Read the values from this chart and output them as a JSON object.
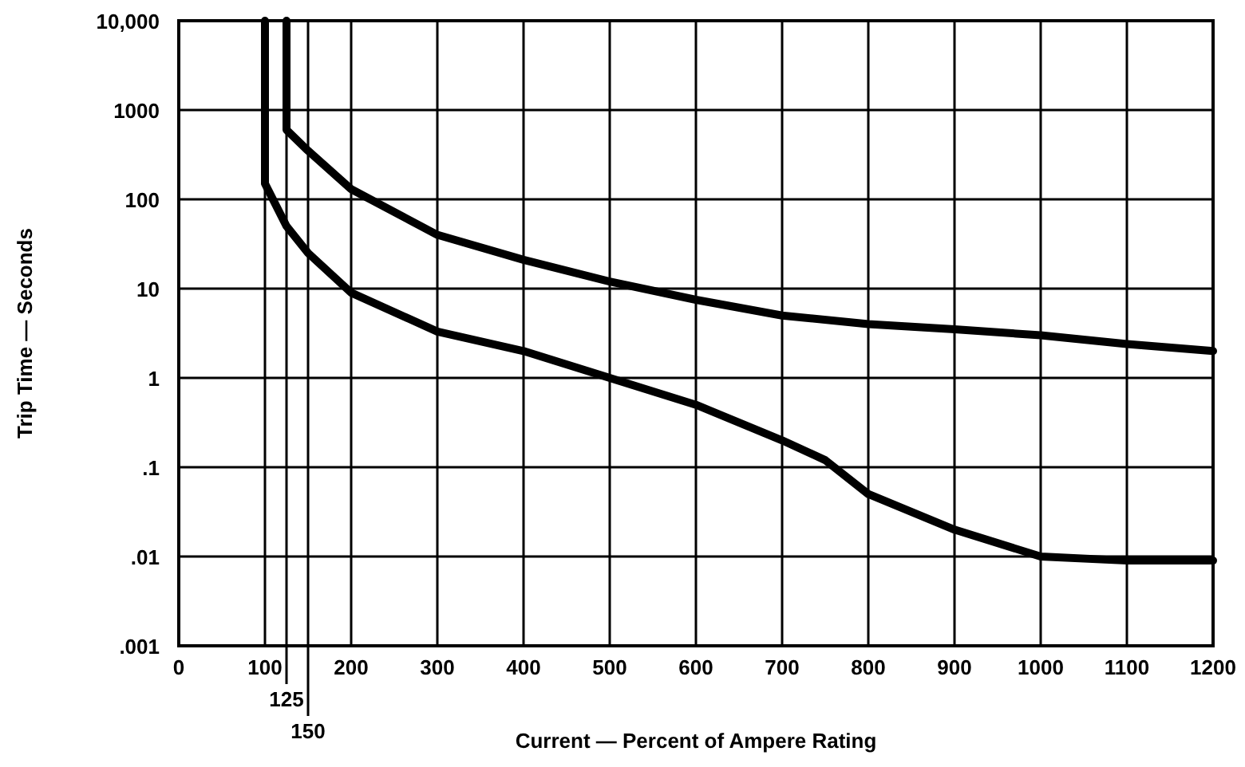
{
  "chart_data": {
    "type": "line",
    "xlabel": "Current — Percent of Ampere Rating",
    "ylabel": "Trip Time — Seconds",
    "log": "y",
    "grid": true,
    "line_style": "solid",
    "marker": "none",
    "xlim": [
      0,
      1200
    ],
    "ylim": [
      0.001,
      10000
    ],
    "ref_lines": [
      {
        "axis": "x",
        "value": 125,
        "label": "125"
      },
      {
        "axis": "x",
        "value": 150,
        "label": "150"
      }
    ],
    "xticks": [
      0,
      100,
      200,
      300,
      400,
      500,
      600,
      700,
      800,
      900,
      1000,
      1100,
      1200
    ],
    "yticks": [
      {
        "value": 0.001,
        "label": ".001"
      },
      {
        "value": 0.01,
        "label": ".01"
      },
      {
        "value": 0.1,
        "label": ".1"
      },
      1,
      10,
      100,
      1000,
      {
        "value": 10000,
        "label": "10,000"
      }
    ],
    "series": [
      {
        "color": "#000000",
        "x": [
          125,
          125,
          150,
          200,
          300,
          400,
          500,
          600,
          700,
          800,
          900,
          1000,
          1100,
          1200
        ],
        "values": [
          10000,
          600,
          350,
          130,
          40,
          21,
          12,
          7.5,
          5,
          4,
          3.5,
          3,
          2.4,
          2
        ]
      },
      {
        "color": "#000000",
        "x": [
          100,
          100,
          125,
          150,
          200,
          300,
          400,
          500,
          600,
          700,
          750,
          800,
          900,
          1000,
          1100,
          1200
        ],
        "values": [
          10000,
          150,
          50,
          25,
          9,
          3.3,
          2,
          1,
          0.5,
          0.2,
          0.12,
          0.05,
          0.02,
          0.01,
          0.009,
          0.009
        ]
      }
    ]
  }
}
